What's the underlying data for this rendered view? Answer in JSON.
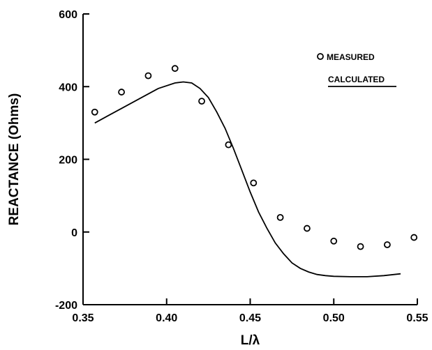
{
  "chart_data": {
    "type": "scatter",
    "xlabel": "L/λ",
    "ylabel": "REACTANCE (Ohms)",
    "xlim": [
      0.35,
      0.55
    ],
    "ylim": [
      -200,
      600
    ],
    "x_ticks": [
      0.35,
      0.4,
      0.45,
      0.5,
      0.55
    ],
    "x_tick_labels": [
      "0.35",
      "0.40",
      "0.45",
      "0.50",
      "0.55"
    ],
    "y_ticks": [
      -200,
      0,
      200,
      400,
      600
    ],
    "y_tick_labels": [
      "-200",
      "0",
      "200",
      "400",
      "600"
    ],
    "grid": false,
    "legend_position": "top-right",
    "legend": [
      {
        "label": "MEASURED",
        "style": "open-circle"
      },
      {
        "label": "CALCULATED",
        "style": "line"
      }
    ],
    "series": [
      {
        "name": "MEASURED",
        "style": "open-circle",
        "x": [
          0.357,
          0.373,
          0.389,
          0.405,
          0.421,
          0.437,
          0.452,
          0.468,
          0.484,
          0.5,
          0.516,
          0.532,
          0.548
        ],
        "y": [
          330,
          385,
          430,
          450,
          360,
          240,
          135,
          40,
          10,
          -25,
          -40,
          -35,
          -15
        ]
      },
      {
        "name": "CALCULATED",
        "style": "line",
        "x": [
          0.357,
          0.365,
          0.375,
          0.385,
          0.395,
          0.405,
          0.41,
          0.415,
          0.42,
          0.425,
          0.43,
          0.435,
          0.44,
          0.445,
          0.45,
          0.455,
          0.46,
          0.465,
          0.47,
          0.475,
          0.48,
          0.485,
          0.49,
          0.495,
          0.5,
          0.51,
          0.52,
          0.53,
          0.54
        ],
        "y": [
          300,
          320,
          345,
          370,
          395,
          410,
          413,
          410,
          395,
          370,
          330,
          285,
          230,
          170,
          110,
          55,
          10,
          -30,
          -60,
          -85,
          -100,
          -110,
          -117,
          -120,
          -122,
          -123,
          -123,
          -120,
          -115
        ]
      }
    ]
  }
}
